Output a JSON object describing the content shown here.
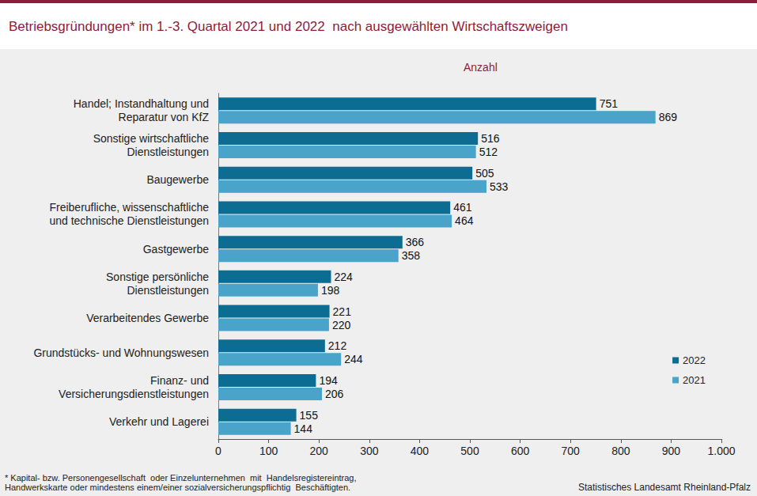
{
  "chart_data": {
    "type": "bar",
    "orientation": "horizontal",
    "title": "Betriebsgründungen* im 1.-3. Quartal 2021 und 2022  nach ausgewählten Wirtschaftszweigen",
    "xlabel": "Anzahl",
    "annotations": [
      "* Kapital- bzw. Personengesellschaft  oder Einzelunternehmen  mit  Handelsregistereintrag,\nHandwerkskarte oder mindestens einem/einer sozialversicherungspflichtig  Beschäftigten.",
      "Statistisches Landesamt Rheinland-Pfalz"
    ],
    "categories": [
      "Handel; Instandhaltung und\nReparatur von KfZ",
      "Sonstige wirtschaftliche\nDienstleistungen",
      "Baugewerbe",
      "Freiberufliche, wissenschaftliche\nund technische Dienstleistungen",
      "Gastgewerbe",
      "Sonstige persönliche\nDienstleistungen",
      "Verarbeitendes Gewerbe",
      "Grundstücks- und Wohnungswesen",
      "Finanz- und\nVersicherungsdienstleistungen",
      "Verkehr und Lagerei"
    ],
    "series": [
      {
        "name": "2022",
        "color": "#0d6c91",
        "values": [
          751,
          516,
          505,
          461,
          366,
          224,
          221,
          212,
          194,
          155
        ]
      },
      {
        "name": "2021",
        "color": "#4aa3c8",
        "values": [
          869,
          512,
          533,
          464,
          358,
          198,
          220,
          244,
          206,
          144
        ]
      }
    ],
    "xlim": [
      0,
      1000
    ],
    "xticks": [
      0,
      100,
      200,
      300,
      400,
      500,
      600,
      700,
      800,
      900,
      {
        "value": 1000,
        "label": "1.000"
      }
    ],
    "grid": false,
    "legend": "right",
    "data_labels": true
  }
}
